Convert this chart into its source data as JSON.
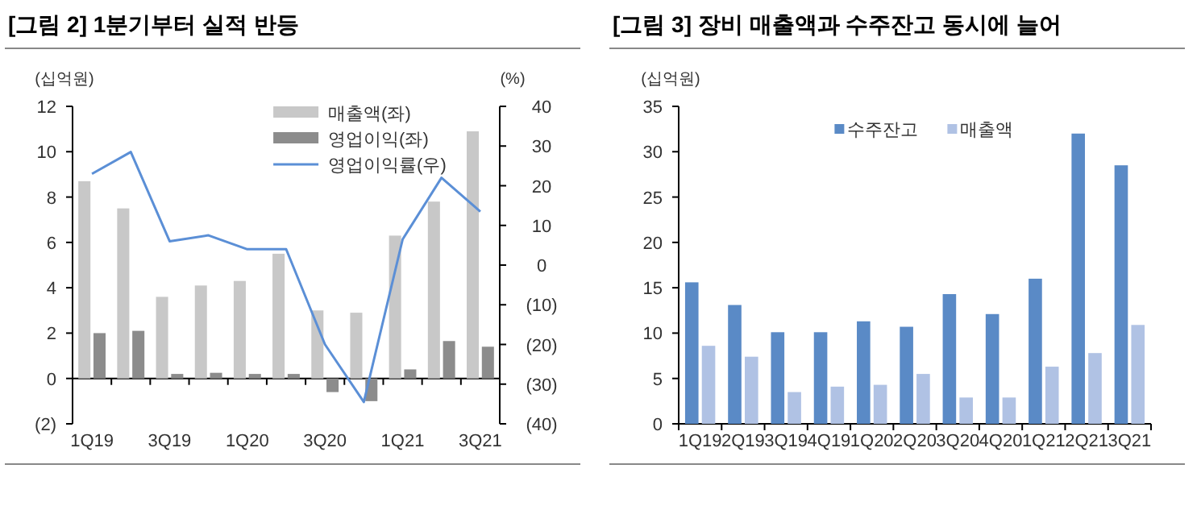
{
  "chart_data": [
    {
      "type": "bar",
      "title": "[그림 2] 1분기부터 실적 반등",
      "ylabel": "(십억원)",
      "y2label": "(%)",
      "categories": [
        "1Q19",
        null,
        "3Q19",
        null,
        "1Q20",
        null,
        "3Q20",
        null,
        "1Q21",
        null,
        "3Q21"
      ],
      "series": [
        {
          "name": "매출액(좌)",
          "color": "#c8c8c8",
          "values": [
            8.7,
            7.5,
            3.6,
            4.1,
            4.3,
            5.5,
            3.0,
            2.9,
            6.3,
            7.8,
            10.9
          ]
        },
        {
          "name": "영업이익(좌)",
          "color": "#8c8c8c",
          "values": [
            2.0,
            2.1,
            0.2,
            0.25,
            0.2,
            0.2,
            -0.6,
            -1.0,
            0.4,
            1.65,
            1.4
          ]
        },
        {
          "name": "영업이익률(우)",
          "type": "line",
          "axis": "y2",
          "color": "#5b8fd6",
          "values": [
            23,
            28.5,
            6,
            7.5,
            4,
            4,
            -20,
            -34.5,
            6.5,
            22,
            13.5
          ]
        }
      ],
      "ylim": [
        -2,
        12
      ],
      "yticks": [
        {
          "value": -2,
          "label": "(2)"
        },
        0,
        2,
        4,
        6,
        8,
        10,
        12
      ],
      "y2lim": [
        -40,
        40
      ],
      "y2ticks": [
        {
          "value": -40,
          "label": "(40)"
        },
        {
          "value": -30,
          "label": "(30)"
        },
        {
          "value": -20,
          "label": "(20)"
        },
        {
          "value": -10,
          "label": "(10)"
        },
        0,
        10,
        20,
        30,
        40
      ],
      "legend": "top"
    },
    {
      "type": "bar",
      "title": "[그림 3] 장비 매출액과 수주잔고 동시에 늘어",
      "ylabel": "(십억원)",
      "categories": [
        "1Q19",
        "2Q19",
        "3Q19",
        "4Q19",
        "1Q20",
        "2Q20",
        "3Q20",
        "4Q20",
        "1Q21",
        "2Q21",
        "3Q21"
      ],
      "series": [
        {
          "name": "수주잔고",
          "color": "#5a8ac6",
          "values": [
            15.6,
            13.1,
            10.1,
            10.1,
            11.3,
            10.7,
            14.3,
            12.1,
            16.0,
            32.0,
            28.5
          ]
        },
        {
          "name": "매출액",
          "color": "#b0c2e4",
          "values": [
            8.6,
            7.4,
            3.5,
            4.1,
            4.3,
            5.5,
            2.9,
            2.9,
            6.3,
            7.8,
            10.9
          ]
        }
      ],
      "ylim": [
        0,
        35
      ],
      "yticks": [
        0,
        5,
        10,
        15,
        20,
        25,
        30,
        35
      ],
      "legend": "top"
    }
  ]
}
